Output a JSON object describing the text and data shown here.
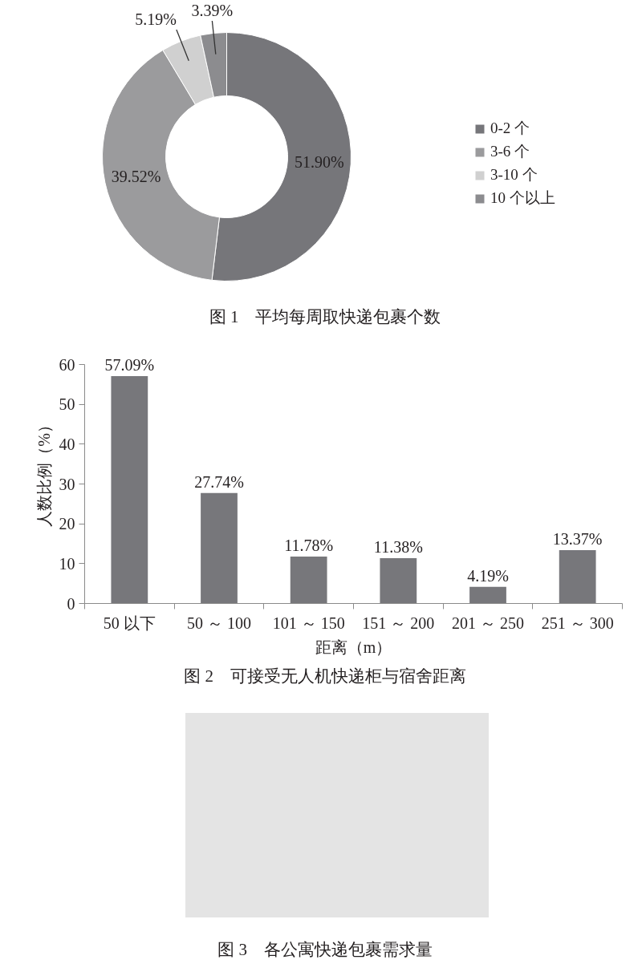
{
  "chart_data": [
    {
      "type": "donut",
      "title": "图 1　平均每周取快递包裹个数",
      "categories": [
        "0-2 个",
        "3-6 个",
        "3-10 个",
        "10 个以上"
      ],
      "values": [
        51.9,
        39.52,
        5.19,
        3.39
      ],
      "colors": [
        "#76767a",
        "#9b9b9d",
        "#d0d0d0",
        "#8c8c8f"
      ],
      "value_labels": [
        "51.90%",
        "39.52%",
        "5.19%",
        "3.39%"
      ],
      "legend": "right"
    },
    {
      "type": "bar",
      "title": "图 2　可接受无人机快递柜与宿舍距离",
      "xlabel": "距离（m）",
      "ylabel": "人数比例（%）",
      "categories": [
        "50 以下",
        "50 ～ 100",
        "101 ～ 150",
        "151 ～ 200",
        "201 ～ 250",
        "251 ～ 300"
      ],
      "values": [
        57.09,
        27.74,
        11.78,
        11.38,
        4.19,
        13.37
      ],
      "color": "#77777b",
      "value_labels": [
        "57.09%",
        "27.74%",
        "11.78%",
        "11.38%",
        "4.19%",
        "13.37%"
      ],
      "ylim": [
        0,
        60
      ],
      "yticks": [
        0,
        10,
        20,
        30,
        40,
        50,
        60
      ]
    },
    {
      "type": "other",
      "title": "图 3　各公寓快递包裹需求量"
    }
  ]
}
